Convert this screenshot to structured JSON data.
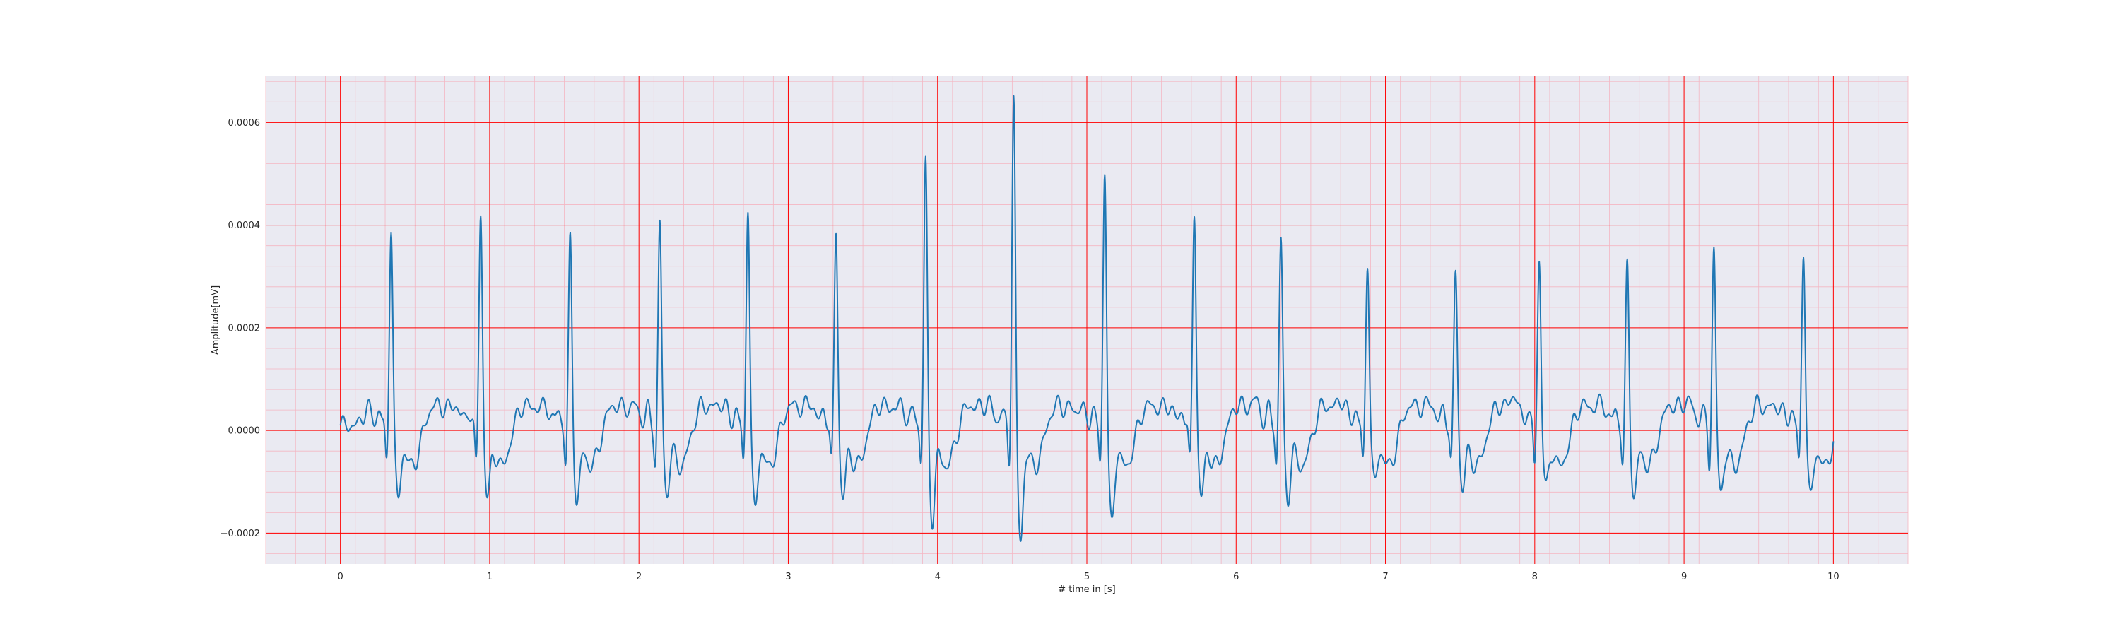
{
  "chart_data": {
    "type": "line",
    "title": "",
    "xlabel": "# time in [s]",
    "ylabel": "Amplitude[mV]",
    "xlim": [
      -0.5,
      10.5
    ],
    "ylim": [
      -0.00026,
      0.00069
    ],
    "x_ticks": [
      0,
      1,
      2,
      3,
      4,
      5,
      6,
      7,
      8,
      9,
      10
    ],
    "x_tick_labels": [
      "0",
      "1",
      "2",
      "3",
      "4",
      "5",
      "6",
      "7",
      "8",
      "9",
      "10"
    ],
    "y_ticks": [
      -0.0002,
      0.0,
      0.0002,
      0.0004,
      0.0006
    ],
    "y_tick_labels": [
      "−0.0002",
      "0.0000",
      "0.0002",
      "0.0004",
      "0.0006"
    ],
    "grid": true,
    "minor_grid": true,
    "legend": "none",
    "colors": {
      "line": "#1f77b4",
      "plot_background": "#eaeaf2",
      "major_grid": "#ff0000",
      "minor_grid": "#f4b6c2"
    },
    "x_range": [
      0,
      10
    ],
    "beats": [
      {
        "t": 0.34,
        "peak": 0.0004,
        "trough": -0.00013
      },
      {
        "t": 0.94,
        "peak": 0.00042,
        "trough": -0.00013
      },
      {
        "t": 1.54,
        "peak": 0.00037,
        "trough": -0.00014
      },
      {
        "t": 2.14,
        "peak": 0.0004,
        "trough": -0.00012
      },
      {
        "t": 2.73,
        "peak": 0.00044,
        "trough": -0.00015
      },
      {
        "t": 3.32,
        "peak": 0.00039,
        "trough": -0.00013
      },
      {
        "t": 3.92,
        "peak": 0.00052,
        "trough": -0.00017
      },
      {
        "t": 4.51,
        "peak": 0.00065,
        "trough": -0.00021
      },
      {
        "t": 5.12,
        "peak": 0.00051,
        "trough": -0.00018
      },
      {
        "t": 5.72,
        "peak": 0.00043,
        "trough": -0.00013
      },
      {
        "t": 6.3,
        "peak": 0.00037,
        "trough": -0.00013
      },
      {
        "t": 6.88,
        "peak": 0.00033,
        "trough": -0.0001
      },
      {
        "t": 7.47,
        "peak": 0.00031,
        "trough": -0.00011
      },
      {
        "t": 8.03,
        "peak": 0.00033,
        "trough": -0.00011
      },
      {
        "t": 8.62,
        "peak": 0.00032,
        "trough": -0.00013
      },
      {
        "t": 9.2,
        "peak": 0.00035,
        "trough": -0.00012
      },
      {
        "t": 9.8,
        "peak": 0.00035,
        "trough": -0.00013
      }
    ]
  }
}
